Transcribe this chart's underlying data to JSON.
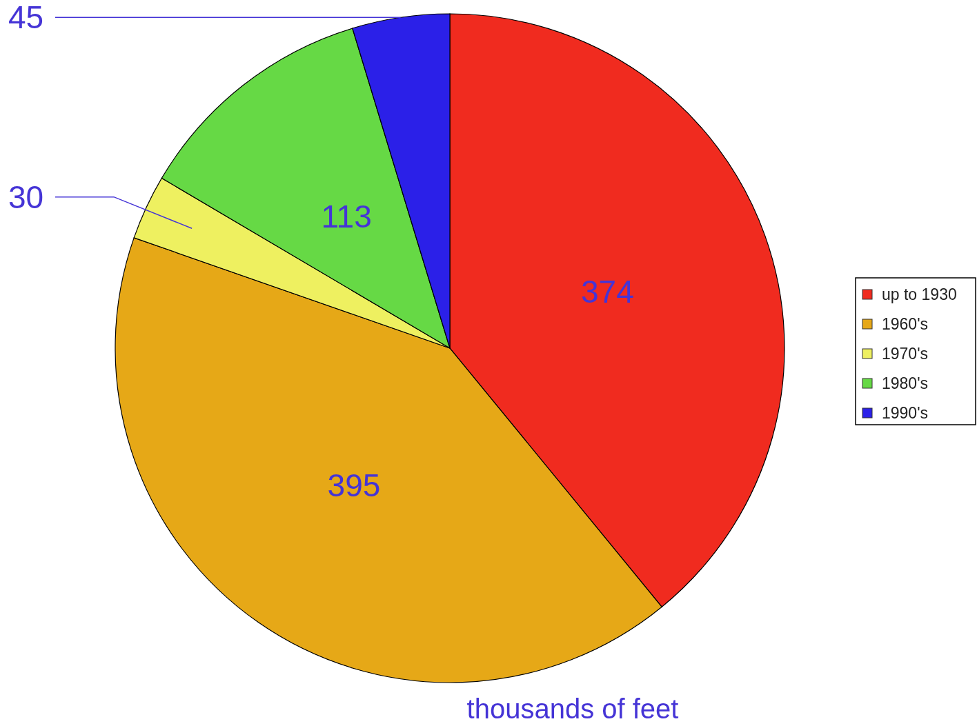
{
  "chart_data": {
    "type": "pie",
    "categories": [
      "up to 1930",
      "1960's",
      "1970's",
      "1980's",
      "1990's"
    ],
    "values": [
      374,
      395,
      30,
      113,
      45
    ],
    "colors": [
      "#f02b1f",
      "#e6a817",
      "#eef060",
      "#66d945",
      "#2b20e8"
    ],
    "data_labels": true,
    "legend": "right",
    "annotations": [
      "thousands of feet"
    ]
  }
}
